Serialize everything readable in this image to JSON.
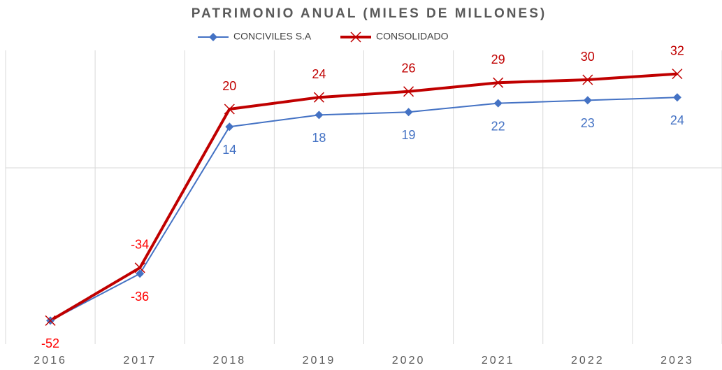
{
  "chart_data": {
    "type": "line",
    "title": "PATRIMONIO ANUAL (MILES DE MILLONES)",
    "categories": [
      "2016",
      "2017",
      "2018",
      "2019",
      "2020",
      "2021",
      "2022",
      "2023"
    ],
    "series": [
      {
        "name": "CONCIVILES S.A",
        "color": "#4472c4",
        "marker": "diamond",
        "values": [
          -52,
          -36,
          14,
          18,
          19,
          22,
          23,
          24
        ]
      },
      {
        "name": "CONSOLIDADO",
        "color": "#c00000",
        "marker": "x",
        "values": [
          -52,
          -34,
          20,
          24,
          26,
          29,
          30,
          32
        ]
      }
    ],
    "negative_label_color": "#ff0000",
    "ylim": [
      -60,
      40
    ],
    "legend": "top"
  }
}
